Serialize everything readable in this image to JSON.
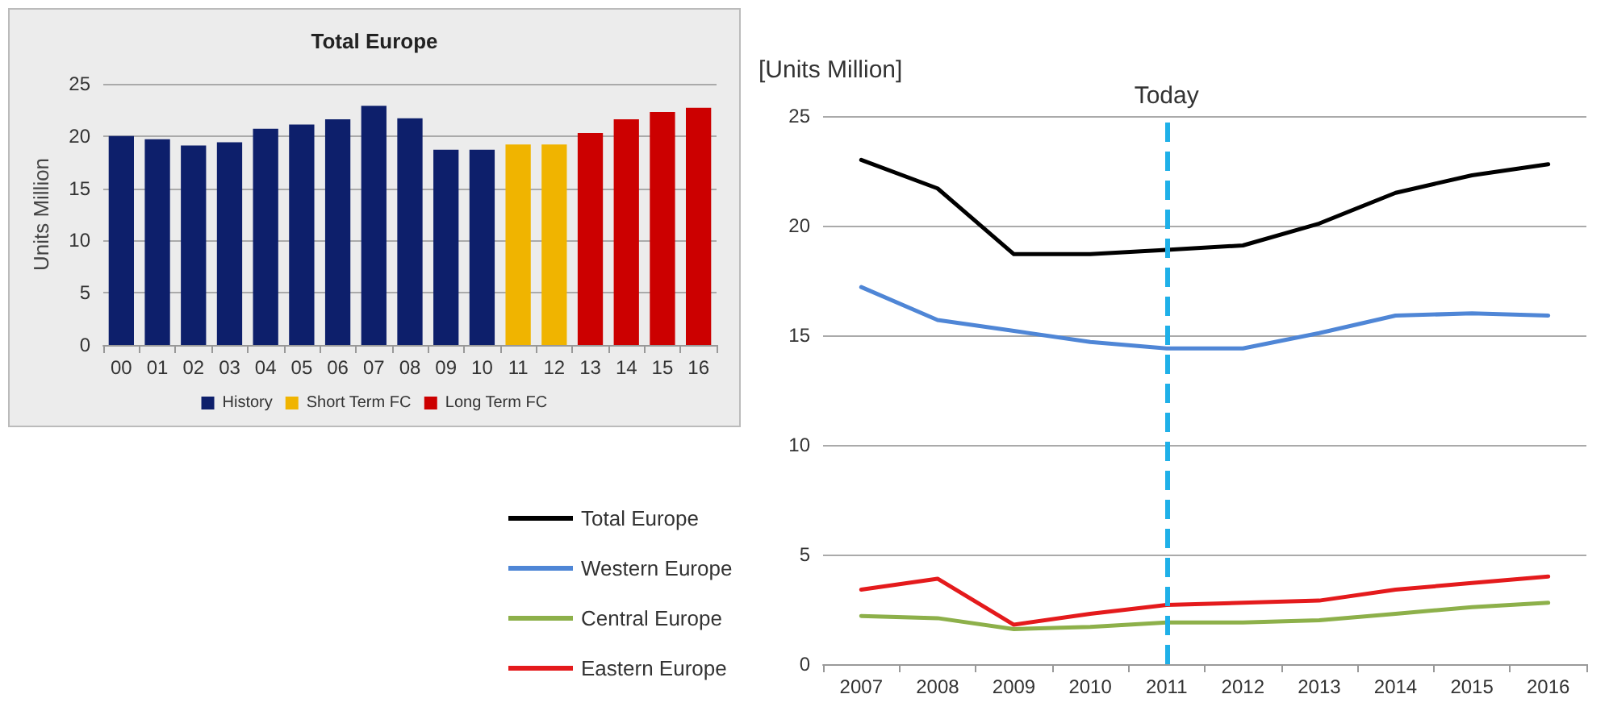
{
  "chart_data": [
    {
      "type": "bar",
      "title": "Total Europe",
      "ylabel": "Units Million",
      "categories": [
        "00",
        "01",
        "02",
        "03",
        "04",
        "05",
        "06",
        "07",
        "08",
        "09",
        "10",
        "11",
        "12",
        "13",
        "14",
        "15",
        "16"
      ],
      "series": [
        {
          "name": "History",
          "color": "#0d1f6b",
          "values": [
            20.0,
            19.7,
            19.1,
            19.4,
            20.7,
            21.1,
            21.6,
            22.9,
            21.7,
            18.7,
            18.7,
            null,
            null,
            null,
            null,
            null,
            null
          ]
        },
        {
          "name": "Short Term FC",
          "color": "#f0b400",
          "values": [
            null,
            null,
            null,
            null,
            null,
            null,
            null,
            null,
            null,
            null,
            null,
            19.2,
            19.2,
            null,
            null,
            null,
            null
          ]
        },
        {
          "name": "Long Term FC",
          "color": "#cc0000",
          "values": [
            null,
            null,
            null,
            null,
            null,
            null,
            null,
            null,
            null,
            null,
            null,
            null,
            null,
            20.3,
            21.6,
            22.3,
            22.7
          ]
        }
      ],
      "ylim": [
        0,
        25
      ],
      "yticks": [
        0,
        5,
        10,
        15,
        20,
        25
      ],
      "grid": "y",
      "legend": "bottom"
    },
    {
      "type": "line",
      "ylabel": "[Units Million]",
      "categories": [
        "2007",
        "2008",
        "2009",
        "2010",
        "2011",
        "2012",
        "2013",
        "2014",
        "2015",
        "2016"
      ],
      "series": [
        {
          "name": "Total Europe",
          "color": "#000000",
          "values": [
            23.0,
            21.7,
            18.7,
            18.7,
            18.9,
            19.1,
            20.1,
            21.5,
            22.3,
            22.8
          ]
        },
        {
          "name": "Western Europe",
          "color": "#4f86d6",
          "values": [
            17.2,
            15.7,
            15.2,
            14.7,
            14.4,
            14.4,
            15.1,
            15.9,
            16.0,
            15.9
          ]
        },
        {
          "name": "Central Europe",
          "color": "#8db04a",
          "values": [
            2.2,
            2.1,
            1.6,
            1.7,
            1.9,
            1.9,
            2.0,
            2.3,
            2.6,
            2.8
          ]
        },
        {
          "name": "Eastern Europe",
          "color": "#e41a1c",
          "values": [
            3.4,
            3.9,
            1.8,
            2.3,
            2.7,
            2.8,
            2.9,
            3.4,
            3.7,
            4.0
          ]
        }
      ],
      "ylim": [
        0,
        25
      ],
      "yticks": [
        0,
        5,
        10,
        15,
        20,
        25
      ],
      "grid": "y",
      "legend": "bottom left",
      "marker": "none",
      "line_style": "solid",
      "ref_lines": [
        {
          "axis": "x",
          "value": "2011",
          "label": "Today",
          "color": "#1fb0e8",
          "line_style": "dashed"
        }
      ]
    }
  ]
}
